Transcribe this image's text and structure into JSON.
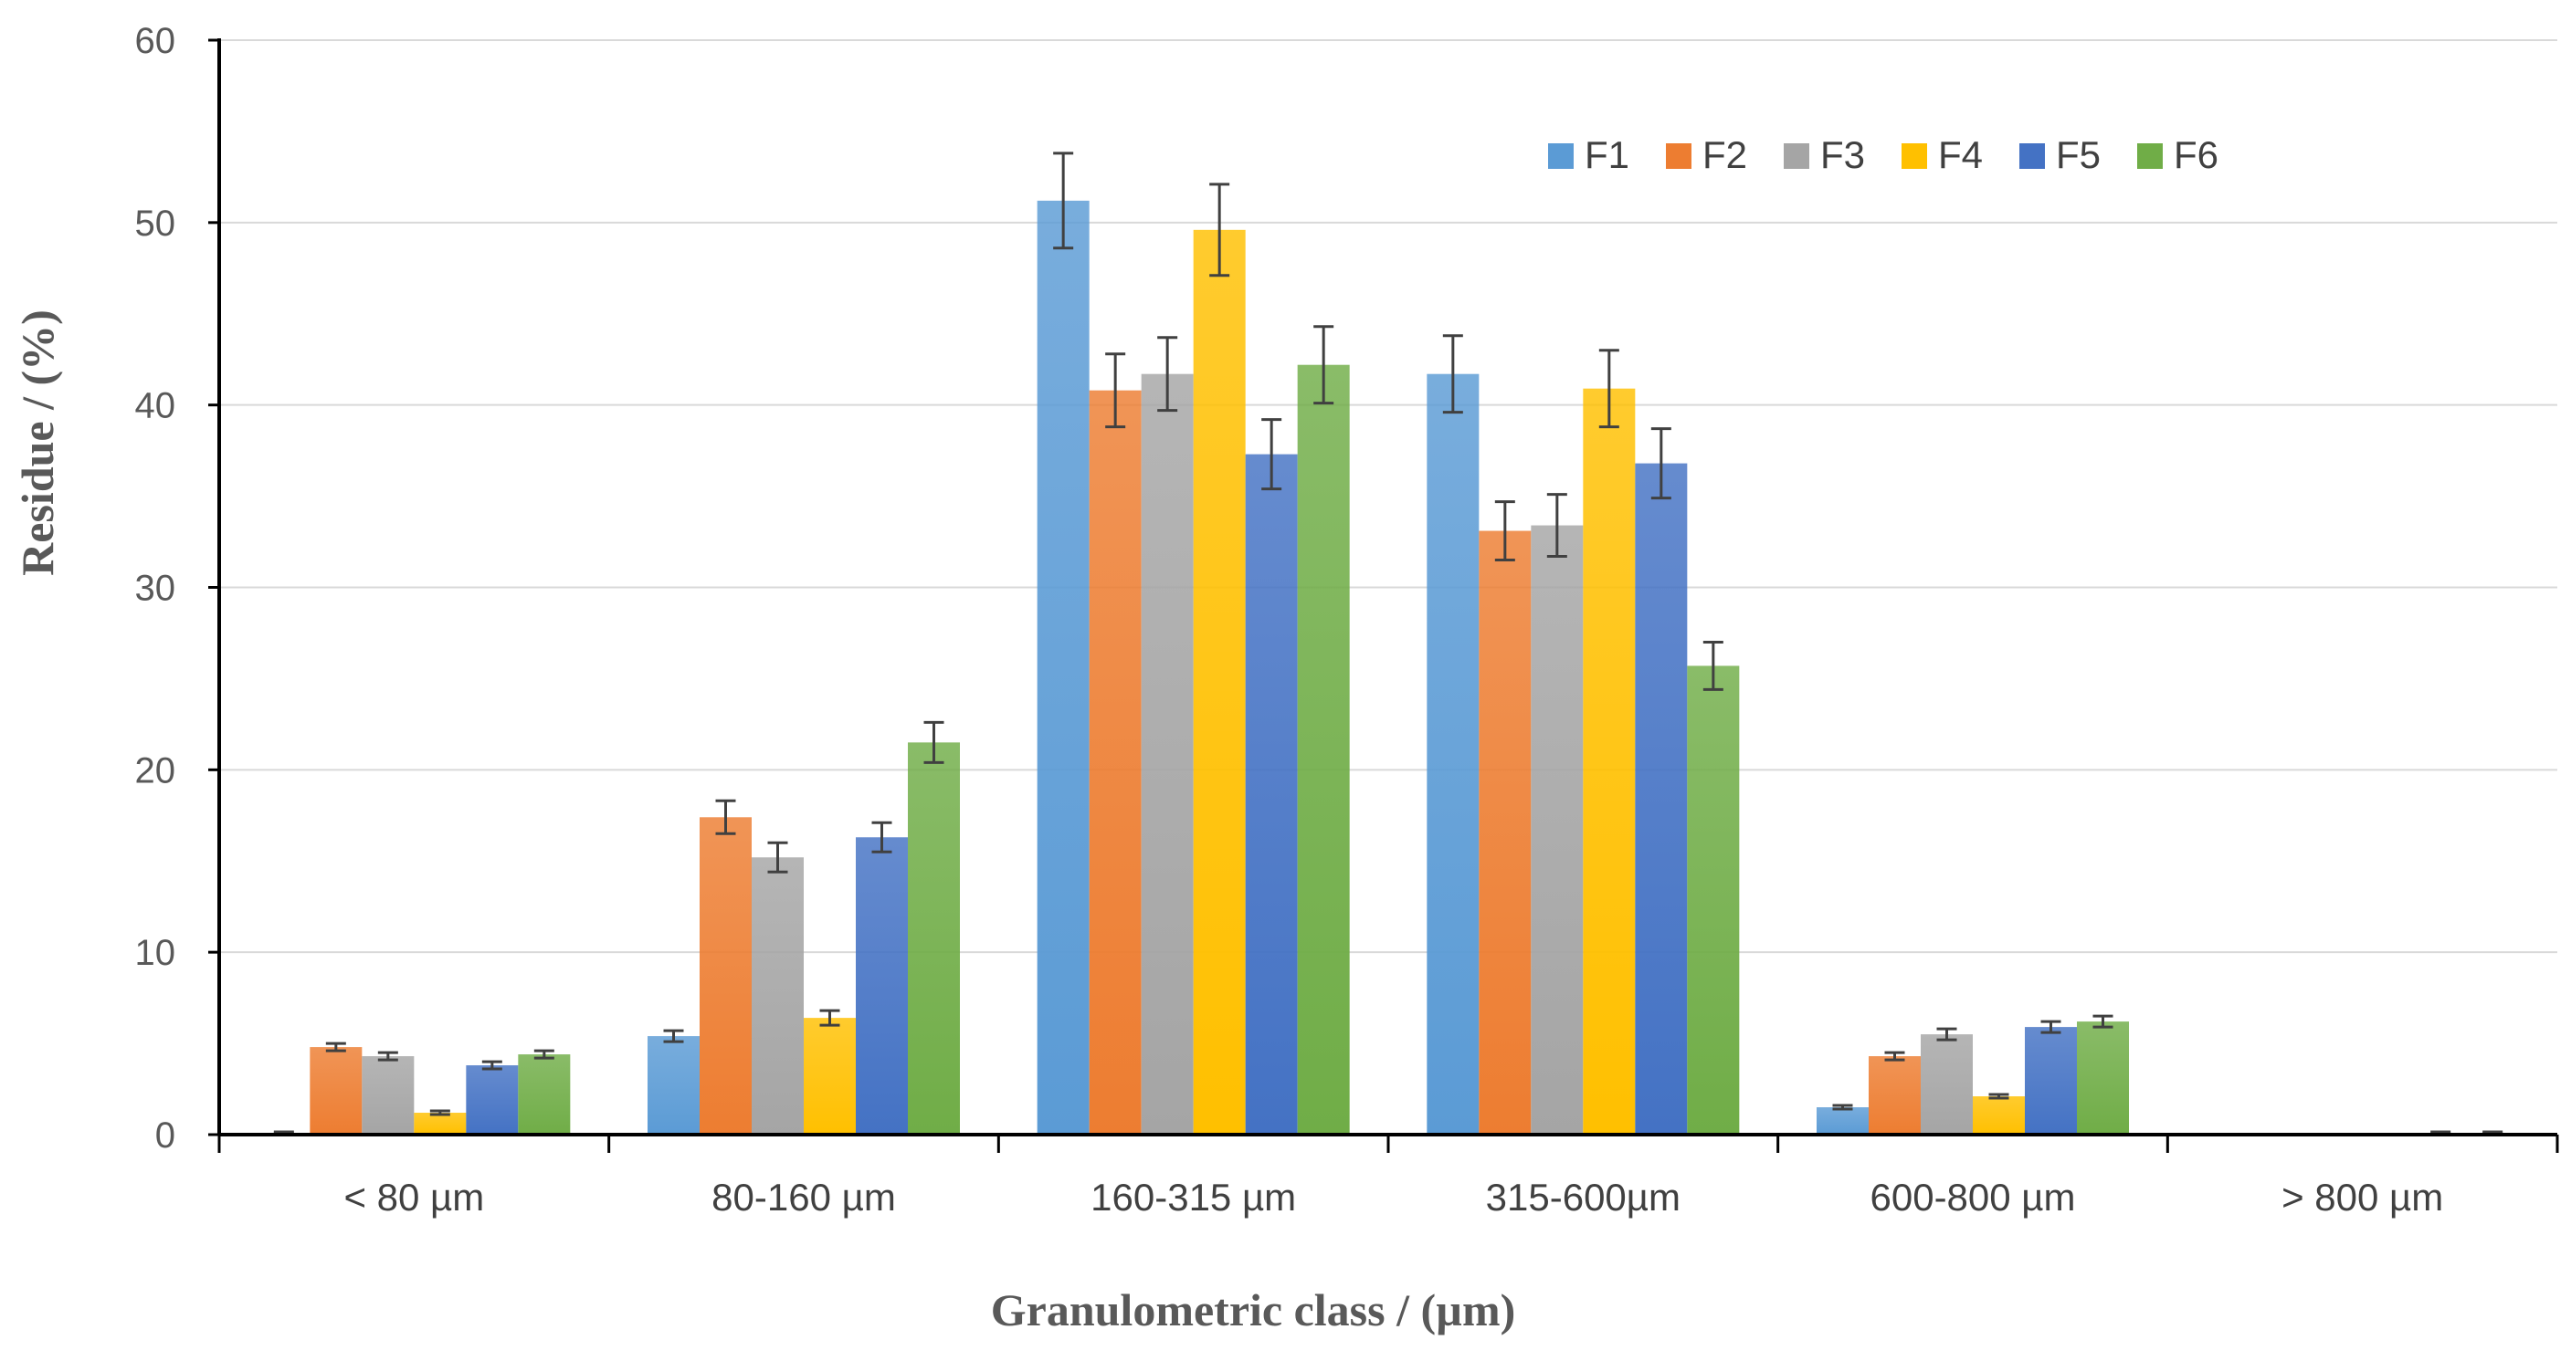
{
  "chart_data": {
    "type": "bar",
    "title": "",
    "xlabel": "Granulometric class / (µm)",
    "ylabel": "Residue / (%)",
    "ylim": [
      0,
      60
    ],
    "yticks": [
      "0",
      "10",
      "20",
      "30",
      "40",
      "50",
      "60"
    ],
    "categories": [
      "< 80 µm",
      "80-160 µm",
      "160-315 µm",
      "315-600µm",
      "600-800 µm",
      "> 800 µm"
    ],
    "legend_position": "top-right",
    "grid": true,
    "series": [
      {
        "name": "F1",
        "color": "#5B9BD5",
        "values": [
          0.1,
          5.4,
          51.2,
          41.7,
          1.5,
          0
        ],
        "errors": [
          0.05,
          0.3,
          2.6,
          2.1,
          0.1,
          0
        ]
      },
      {
        "name": "F2",
        "color": "#ED7D31",
        "values": [
          4.8,
          17.4,
          40.8,
          33.1,
          4.3,
          0
        ],
        "errors": [
          0.2,
          0.9,
          2.0,
          1.6,
          0.2,
          0
        ]
      },
      {
        "name": "F3",
        "color": "#A5A5A5",
        "values": [
          4.3,
          15.2,
          41.7,
          33.4,
          5.5,
          0
        ],
        "errors": [
          0.2,
          0.8,
          2.0,
          1.7,
          0.3,
          0
        ]
      },
      {
        "name": "F4",
        "color": "#FFC000",
        "values": [
          1.2,
          6.4,
          49.6,
          40.9,
          2.1,
          0
        ],
        "errors": [
          0.1,
          0.4,
          2.5,
          2.1,
          0.1,
          0
        ]
      },
      {
        "name": "F5",
        "color": "#4472C4",
        "values": [
          3.8,
          16.3,
          37.3,
          36.8,
          5.9,
          0.1
        ],
        "errors": [
          0.2,
          0.8,
          1.9,
          1.9,
          0.3,
          0.05
        ]
      },
      {
        "name": "F6",
        "color": "#70AD47",
        "values": [
          4.4,
          21.5,
          42.2,
          25.7,
          6.2,
          0.1
        ],
        "errors": [
          0.2,
          1.1,
          2.1,
          1.3,
          0.3,
          0.05
        ]
      }
    ]
  }
}
